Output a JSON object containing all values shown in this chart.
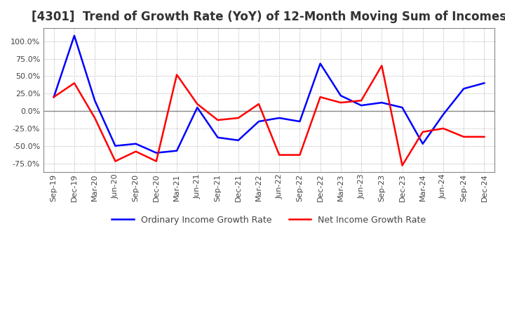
{
  "title": "[4301]  Trend of Growth Rate (YoY) of 12-Month Moving Sum of Incomes",
  "title_fontsize": 12,
  "x_labels": [
    "Sep-19",
    "Dec-19",
    "Mar-20",
    "Jun-20",
    "Sep-20",
    "Dec-20",
    "Mar-21",
    "Jun-21",
    "Sep-21",
    "Dec-21",
    "Mar-22",
    "Jun-22",
    "Sep-22",
    "Dec-22",
    "Mar-23",
    "Jun-23",
    "Sep-23",
    "Dec-23",
    "Mar-24",
    "Jun-24",
    "Sep-24",
    "Dec-24"
  ],
  "ordinary_income": [
    20.0,
    108.0,
    15.0,
    -50.0,
    -47.0,
    -60.0,
    -57.0,
    5.0,
    -38.0,
    -42.0,
    -15.0,
    -10.0,
    -15.0,
    68.0,
    22.0,
    8.0,
    12.0,
    5.0,
    -47.0,
    -5.0,
    32.0,
    40.0
  ],
  "net_income": [
    20.0,
    40.0,
    -10.0,
    -72.0,
    -58.0,
    -72.0,
    52.0,
    10.0,
    -13.0,
    -10.0,
    10.0,
    -63.0,
    -63.0,
    20.0,
    12.0,
    15.0,
    65.0,
    -78.0,
    -30.0,
    -25.0,
    -37.0,
    -37.0
  ],
  "ylim": [
    -87.5,
    118.75
  ],
  "yticks": [
    -75.0,
    -50.0,
    -25.0,
    0.0,
    25.0,
    50.0,
    75.0,
    100.0
  ],
  "line_color_ordinary": "#0000FF",
  "line_color_net": "#FF0000",
  "background_color": "#FFFFFF",
  "grid_color": "#AAAAAA",
  "zero_line_color": "#888888",
  "legend_ordinary": "Ordinary Income Growth Rate",
  "legend_net": "Net Income Growth Rate"
}
